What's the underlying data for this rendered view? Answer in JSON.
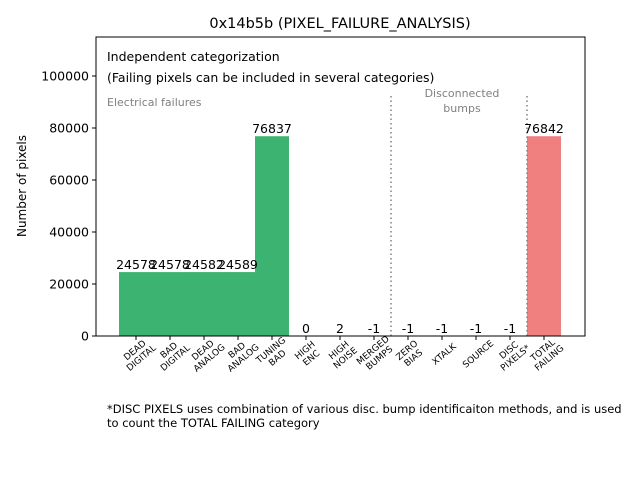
{
  "chart_data": {
    "type": "bar",
    "title": "0x14b5b (PIXEL_FAILURE_ANALYSIS)",
    "xlabel": "",
    "ylabel": "Number of pixels",
    "ylim": [
      0,
      115000
    ],
    "yticks": [
      0,
      20000,
      40000,
      60000,
      80000,
      100000
    ],
    "yticklabels": [
      "0",
      "20000",
      "40000",
      "60000",
      "80000",
      "100000"
    ],
    "categories": [
      "DEAD\nDIGITAL",
      "BAD\nDIGITAL",
      "DEAD\nANALOG",
      "BAD\nANALOG",
      "TUNING\nBAD",
      "HIGH\nENC",
      "HIGH\nNOISE",
      "MERGED\nBUMPS",
      "ZERO\nBIAS",
      "XTALK",
      "SOURCE",
      "DISC\nPIXELS*",
      "TOTAL\nFAILING"
    ],
    "values": [
      24578,
      24578,
      24582,
      24589,
      76837,
      0,
      2,
      -1,
      -1,
      -1,
      -1,
      -1,
      76842
    ],
    "value_labels": [
      "24578",
      "24578",
      "24582",
      "24589",
      "76837",
      "0",
      "2",
      "-1",
      "-1",
      "-1",
      "-1",
      "-1",
      "76842"
    ],
    "bar_colors": [
      "#3cb371",
      "#3cb371",
      "#3cb371",
      "#3cb371",
      "#3cb371",
      "#3cb371",
      "#3cb371",
      "#3cb371",
      "#3cb371",
      "#3cb371",
      "#3cb371",
      "#3cb371",
      "#f08080"
    ],
    "dividers_after_category": [
      7,
      11
    ],
    "divider_color": "#808080",
    "annotations": {
      "header_line1": "Independent categorization",
      "header_line2": "(Failing pixels can be included in several categories)",
      "electrical": "Electrical failures",
      "disconnected_line1": "Disconnected",
      "disconnected_line2": "bumps"
    },
    "annotation_color": "#808080",
    "grid": false,
    "legend": "none"
  },
  "footnote": "*DISC PIXELS uses combination of various disc. bump identificaiton methods, and is used to count the TOTAL FAILING category"
}
